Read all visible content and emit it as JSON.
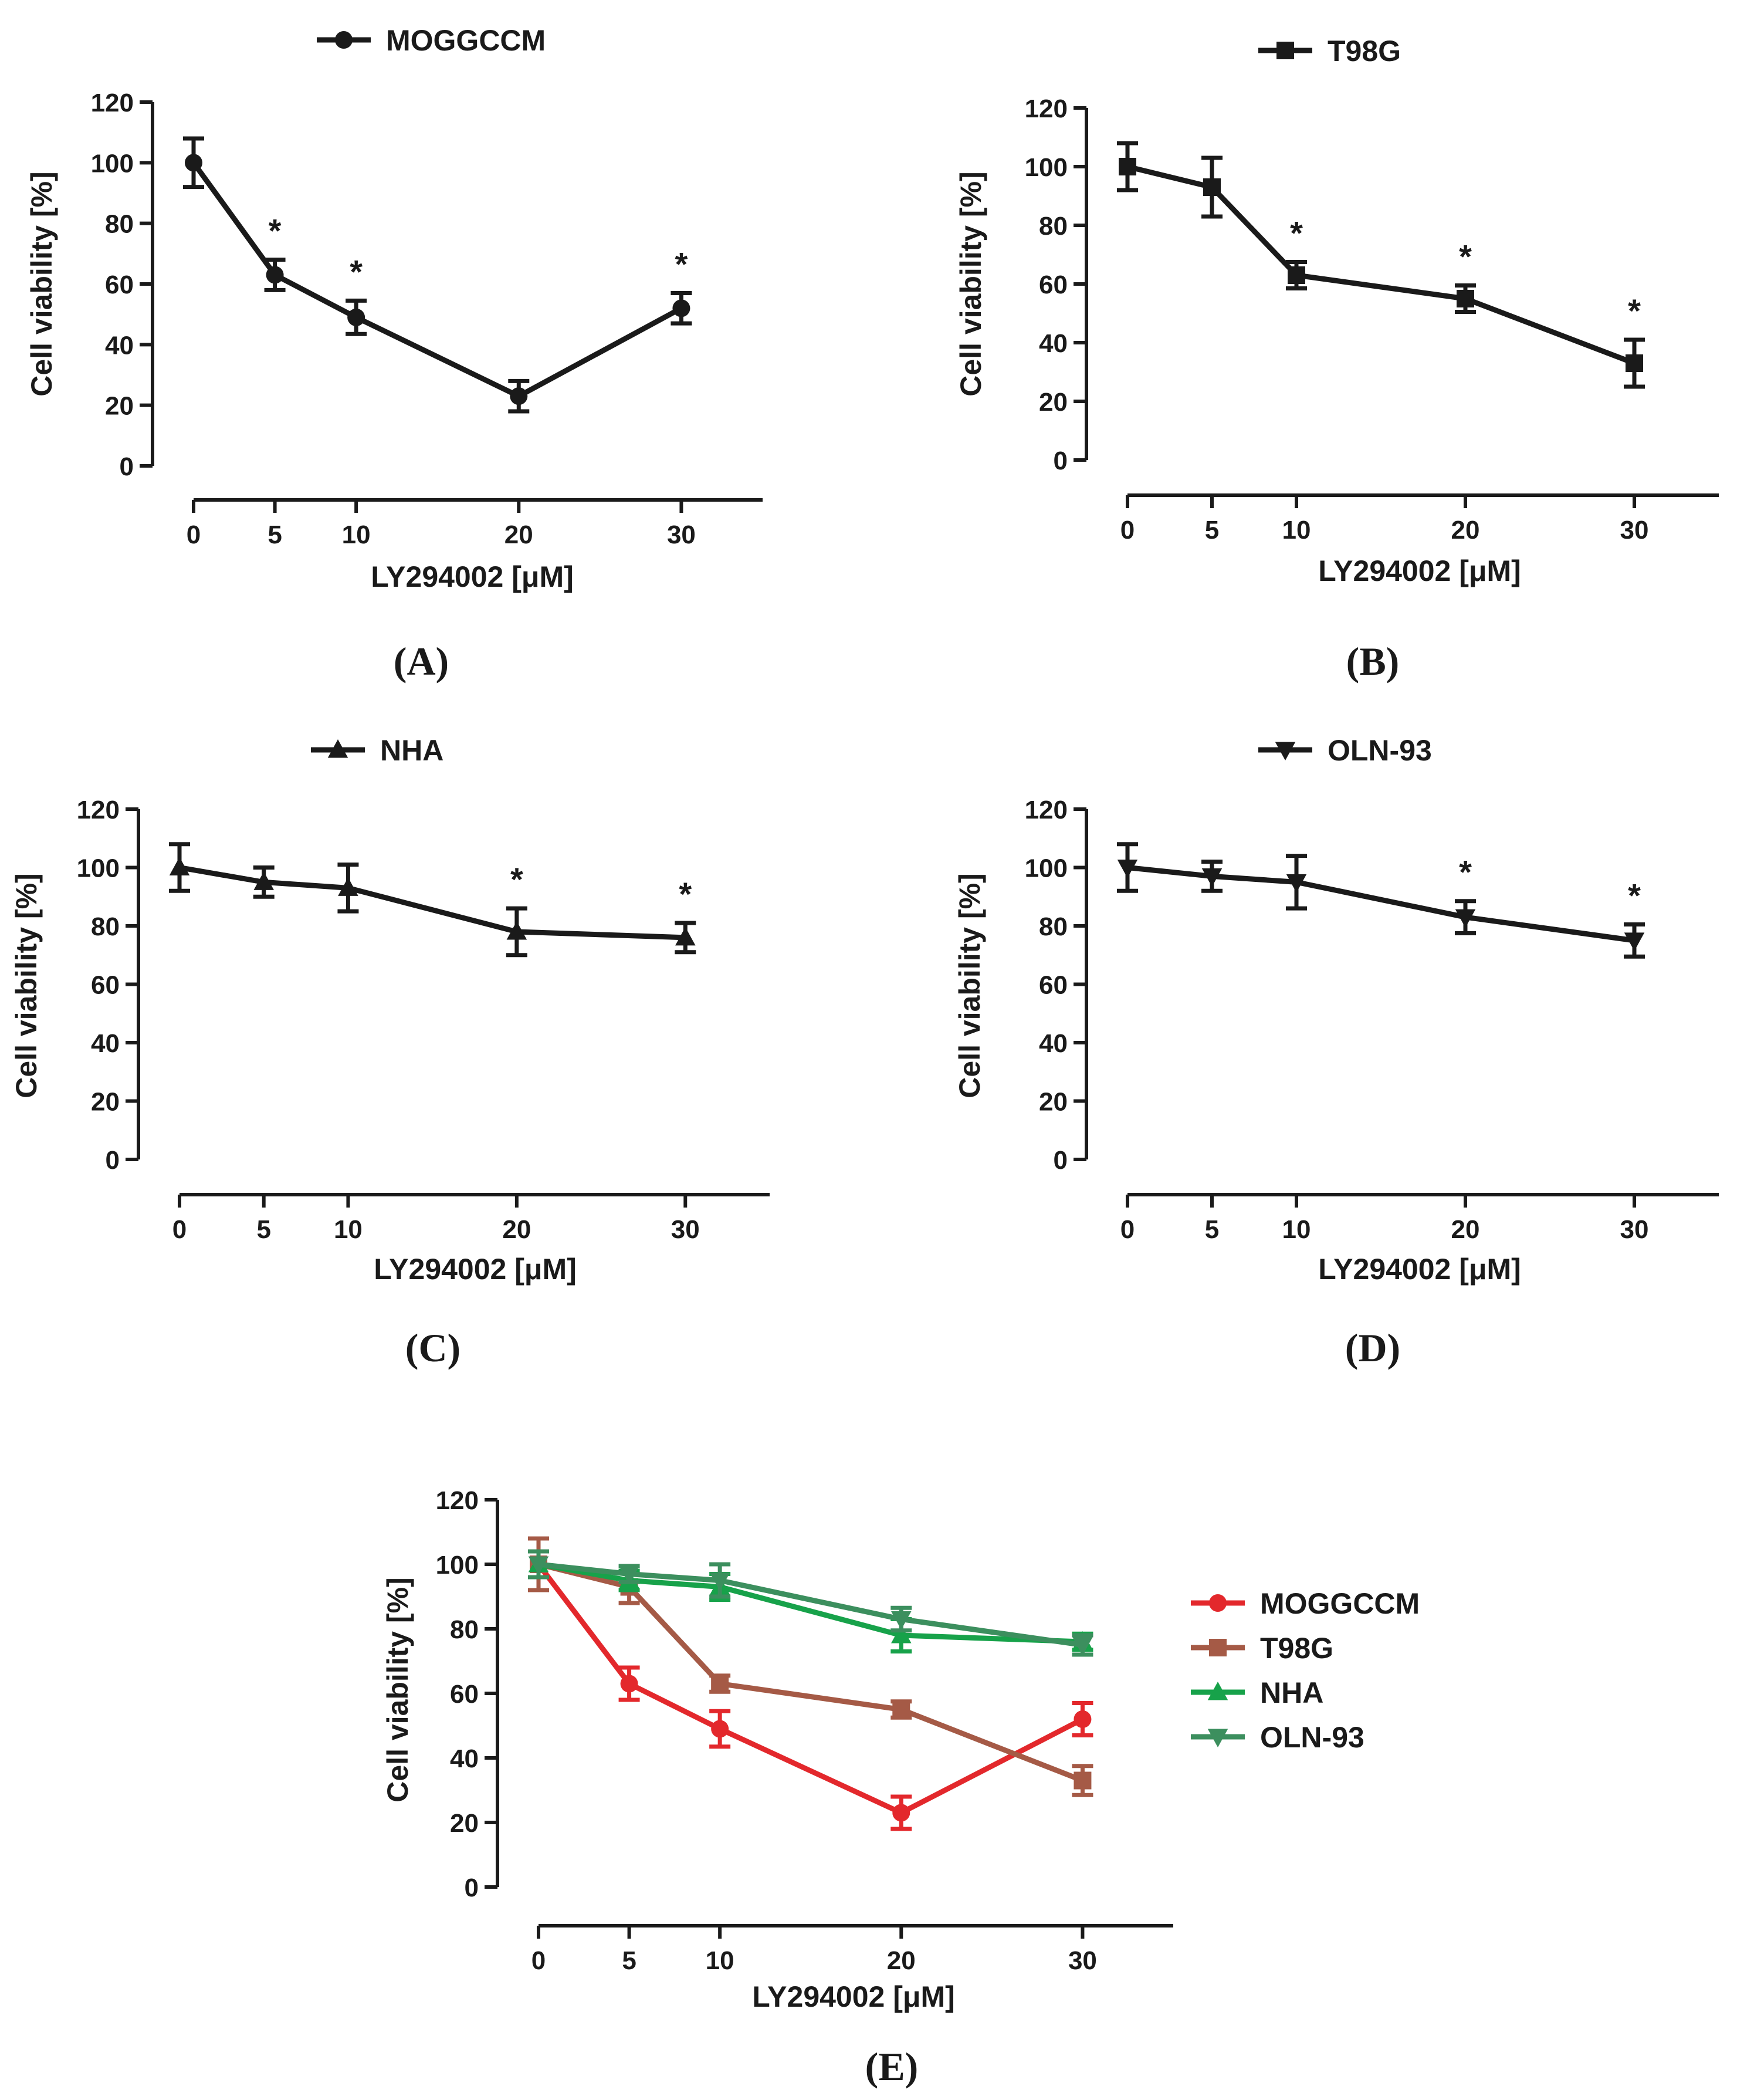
{
  "chart_data": [
    {
      "type": "line",
      "panel_label": "(A)",
      "title": "",
      "legend": [
        "MOGGCCM"
      ],
      "xlabel": "LY294002 [μM]",
      "ylabel": "Cell viability [%]",
      "x_ticks": [
        "0",
        "5",
        "10",
        "20",
        "30"
      ],
      "y_ticks": [
        "0",
        "20",
        "40",
        "60",
        "80",
        "100",
        "120"
      ],
      "xlim": [
        0,
        35
      ],
      "ylim": [
        0,
        120
      ],
      "series": [
        {
          "name": "MOGGCCM",
          "marker": "circle",
          "color": "#1a1a1a",
          "x": [
            0,
            5,
            10,
            20,
            30
          ],
          "y": [
            100,
            63,
            49,
            23,
            52
          ],
          "err": [
            8,
            5,
            5.5,
            5,
            5
          ]
        }
      ],
      "significance": [
        {
          "x": 5,
          "label": "*"
        },
        {
          "x": 10,
          "label": "*"
        },
        {
          "x": 30,
          "label": "*"
        }
      ]
    },
    {
      "type": "line",
      "panel_label": "(B)",
      "title": "",
      "legend": [
        "T98G"
      ],
      "xlabel": "LY294002 [μM]",
      "ylabel": "Cell viability [%]",
      "x_ticks": [
        "0",
        "5",
        "10",
        "20",
        "30"
      ],
      "y_ticks": [
        "0",
        "20",
        "40",
        "60",
        "80",
        "100",
        "120"
      ],
      "xlim": [
        0,
        35
      ],
      "ylim": [
        0,
        120
      ],
      "series": [
        {
          "name": "T98G",
          "marker": "square",
          "color": "#1a1a1a",
          "x": [
            0,
            5,
            10,
            20,
            30
          ],
          "y": [
            100,
            93,
            63,
            55,
            33
          ],
          "err": [
            8,
            10,
            4.5,
            4.5,
            8
          ]
        }
      ],
      "significance": [
        {
          "x": 10,
          "label": "*"
        },
        {
          "x": 20,
          "label": "*"
        },
        {
          "x": 30,
          "label": "*"
        }
      ]
    },
    {
      "type": "line",
      "panel_label": "(C)",
      "title": "",
      "legend": [
        "NHA"
      ],
      "xlabel": "LY294002 [μM]",
      "ylabel": "Cell viability [%]",
      "x_ticks": [
        "0",
        "5",
        "10",
        "20",
        "30"
      ],
      "y_ticks": [
        "0",
        "20",
        "40",
        "60",
        "80",
        "100",
        "120"
      ],
      "xlim": [
        0,
        35
      ],
      "ylim": [
        0,
        120
      ],
      "series": [
        {
          "name": "NHA",
          "marker": "triangle-up",
          "color": "#1a1a1a",
          "x": [
            0,
            5,
            10,
            20,
            30
          ],
          "y": [
            100,
            95,
            93,
            78,
            76
          ],
          "err": [
            8,
            5,
            8,
            8,
            5
          ]
        }
      ],
      "significance": [
        {
          "x": 20,
          "label": "*"
        },
        {
          "x": 30,
          "label": "*"
        }
      ]
    },
    {
      "type": "line",
      "panel_label": "(D)",
      "title": "",
      "legend": [
        "OLN-93"
      ],
      "xlabel": "LY294002 [μM]",
      "ylabel": "Cell viability [%]",
      "x_ticks": [
        "0",
        "5",
        "10",
        "20",
        "30"
      ],
      "y_ticks": [
        "0",
        "20",
        "40",
        "60",
        "80",
        "100",
        "120"
      ],
      "xlim": [
        0,
        35
      ],
      "ylim": [
        0,
        120
      ],
      "series": [
        {
          "name": "OLN-93",
          "marker": "triangle-down",
          "color": "#1a1a1a",
          "x": [
            0,
            5,
            10,
            20,
            30
          ],
          "y": [
            100,
            97,
            95,
            83,
            75
          ],
          "err": [
            8,
            5,
            9,
            5.5,
            5.5
          ]
        }
      ],
      "significance": [
        {
          "x": 20,
          "label": "*"
        },
        {
          "x": 30,
          "label": "*"
        }
      ]
    },
    {
      "type": "line",
      "panel_label": "(E)",
      "title": "",
      "legend": [
        "MOGGCCM",
        "T98G",
        "NHA",
        "OLN-93"
      ],
      "xlabel": "LY294002 [μM]",
      "ylabel": "Cell viability [%]",
      "x_ticks": [
        "0",
        "5",
        "10",
        "20",
        "30"
      ],
      "y_ticks": [
        "0",
        "20",
        "40",
        "60",
        "80",
        "100",
        "120"
      ],
      "xlim": [
        0,
        35
      ],
      "ylim": [
        0,
        120
      ],
      "series": [
        {
          "name": "MOGGCCM",
          "marker": "circle",
          "color": "#e3282c",
          "x": [
            0,
            5,
            10,
            20,
            30
          ],
          "y": [
            100,
            63,
            49,
            23,
            52
          ],
          "err": [
            8,
            5,
            5.5,
            5,
            5
          ]
        },
        {
          "name": "T98G",
          "marker": "square",
          "color": "#a55a46",
          "x": [
            0,
            5,
            10,
            20,
            30
          ],
          "y": [
            100,
            93,
            63,
            55,
            33
          ],
          "err": [
            8,
            5,
            2.5,
            2.5,
            4.5
          ]
        },
        {
          "name": "NHA",
          "marker": "triangle-up",
          "color": "#17a24a",
          "x": [
            0,
            5,
            10,
            20,
            30
          ],
          "y": [
            100,
            95,
            93,
            78,
            76
          ],
          "err": [
            4,
            3,
            4,
            5,
            2.5
          ]
        },
        {
          "name": "OLN-93",
          "marker": "triangle-down",
          "color": "#3c8f5e",
          "x": [
            0,
            5,
            10,
            20,
            30
          ],
          "y": [
            100,
            97,
            95,
            83,
            75
          ],
          "err": [
            4,
            2.5,
            5,
            3.5,
            3
          ]
        }
      ],
      "significance": []
    }
  ]
}
